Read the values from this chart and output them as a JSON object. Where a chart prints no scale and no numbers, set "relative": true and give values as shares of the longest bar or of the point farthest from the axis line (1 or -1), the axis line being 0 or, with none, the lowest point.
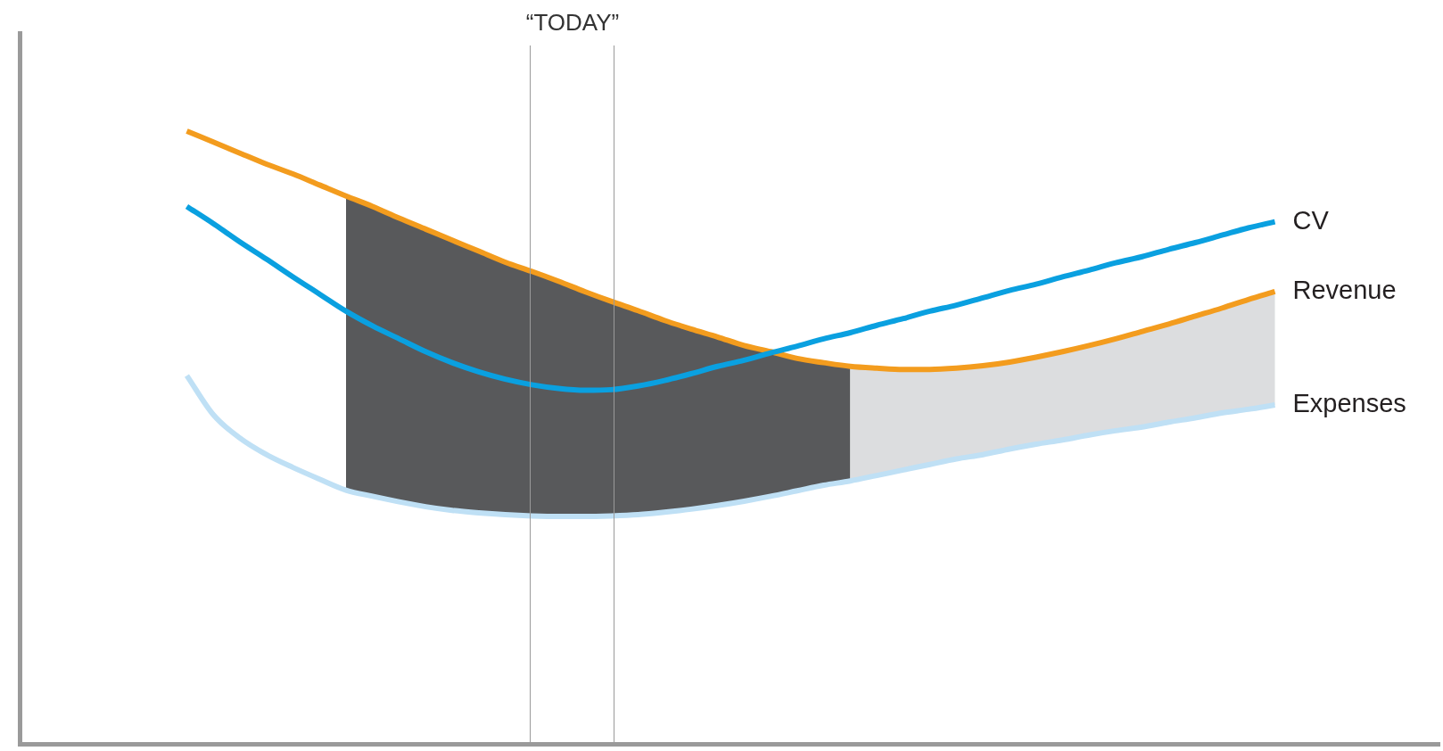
{
  "chart_data": {
    "type": "line",
    "relative": true,
    "legend": false,
    "grid": false,
    "marker": "none",
    "line_style": "solid",
    "categories": [
      null,
      null,
      null,
      null,
      null,
      null,
      null,
      null,
      null,
      null,
      null,
      null,
      null,
      null,
      null,
      null,
      null,
      null,
      null,
      null,
      null,
      null,
      null,
      null,
      null,
      null,
      null,
      null,
      null,
      null,
      null,
      null,
      null,
      null,
      null,
      null,
      null,
      null,
      null,
      null,
      null,
      null
    ],
    "annotations": [
      "“TODAY”"
    ],
    "series": [
      {
        "type": "area",
        "color": "#58595b",
        "values": [
          null,
          null,
          null,
          null,
          null,
          null,
          0.894,
          0.877,
          0.858,
          0.84,
          0.822,
          0.804,
          0.786,
          0.771,
          0.755,
          0.738,
          0.722,
          0.707,
          0.691,
          0.677,
          0.664,
          0.65,
          0.64,
          0.629,
          0.622,
          0.616,
          null,
          null,
          null,
          null,
          null,
          null,
          null,
          null,
          null,
          null,
          null,
          null,
          null,
          null,
          null,
          null
        ]
      },
      {
        "type": "area",
        "color": "#dcdddf",
        "values": [
          null,
          null,
          null,
          null,
          null,
          null,
          null,
          null,
          null,
          null,
          null,
          null,
          null,
          null,
          null,
          null,
          null,
          null,
          null,
          null,
          null,
          null,
          null,
          null,
          null,
          0.616,
          0.613,
          0.611,
          0.611,
          0.613,
          0.617,
          0.623,
          0.631,
          0.64,
          0.65,
          0.661,
          0.673,
          0.685,
          0.698,
          0.711,
          0.725,
          0.738
        ]
      },
      {
        "name": "CV",
        "color": "#0aa0e0",
        "values": [
          0.877,
          0.849,
          0.819,
          0.791,
          0.762,
          0.734,
          0.706,
          0.682,
          0.661,
          0.64,
          0.622,
          0.607,
          0.595,
          0.586,
          0.58,
          0.577,
          0.578,
          0.584,
          0.593,
          0.604,
          0.616,
          0.626,
          0.638,
          0.649,
          0.661,
          0.671,
          0.683,
          0.694,
          0.706,
          0.716,
          0.728,
          0.74,
          0.75,
          0.762,
          0.773,
          0.785,
          0.795,
          0.807,
          0.818,
          0.83,
          0.842,
          0.852
        ]
      },
      {
        "name": "Revenue",
        "color": "#f39c1e",
        "values": [
          1.0,
          0.982,
          0.964,
          0.946,
          0.93,
          0.912,
          0.894,
          0.877,
          0.858,
          0.84,
          0.822,
          0.804,
          0.786,
          0.771,
          0.755,
          0.738,
          0.722,
          0.707,
          0.691,
          0.677,
          0.664,
          0.65,
          0.64,
          0.629,
          0.622,
          0.616,
          0.613,
          0.611,
          0.611,
          0.613,
          0.617,
          0.623,
          0.631,
          0.64,
          0.65,
          0.661,
          0.673,
          0.685,
          0.698,
          0.711,
          0.725,
          0.738
        ]
      },
      {
        "name": "Expenses",
        "color": "#bfe0f5",
        "values": [
          0.601,
          0.537,
          0.499,
          0.472,
          0.451,
          0.432,
          0.414,
          0.404,
          0.395,
          0.387,
          0.381,
          0.377,
          0.374,
          0.372,
          0.371,
          0.371,
          0.372,
          0.374,
          0.378,
          0.383,
          0.389,
          0.396,
          0.404,
          0.413,
          0.422,
          0.429,
          0.438,
          0.447,
          0.456,
          0.465,
          0.472,
          0.481,
          0.489,
          0.496,
          0.504,
          0.511,
          0.517,
          0.525,
          0.532,
          0.54,
          0.546,
          0.553
        ]
      }
    ]
  }
}
